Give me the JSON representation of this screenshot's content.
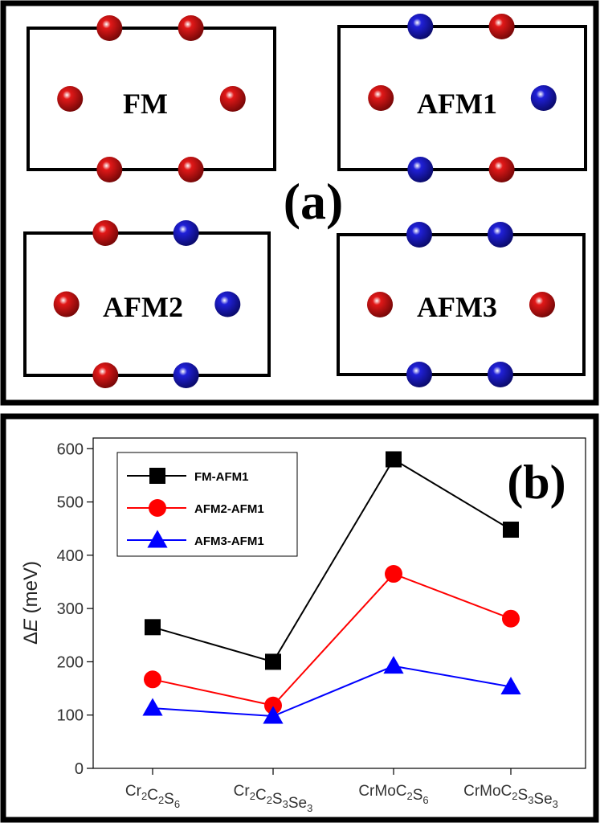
{
  "panel_a": {
    "label": "(a)",
    "colors": {
      "up": "#e11818",
      "down": "#2020d8"
    },
    "configs": [
      {
        "label": "FM",
        "spins": {
          "top": [
            "up",
            "up"
          ],
          "left": "up",
          "right": "up",
          "bottom": [
            "up",
            "up"
          ]
        }
      },
      {
        "label": "AFM1",
        "spins": {
          "top": [
            "down",
            "up"
          ],
          "left": "up",
          "right": "down",
          "bottom": [
            "down",
            "up"
          ]
        }
      },
      {
        "label": "AFM2",
        "spins": {
          "top": [
            "up",
            "down"
          ],
          "left": "up",
          "right": "down",
          "bottom": [
            "up",
            "down"
          ]
        }
      },
      {
        "label": "AFM3",
        "spins": {
          "top": [
            "down",
            "down"
          ],
          "left": "up",
          "right": "up",
          "bottom": [
            "down",
            "down"
          ]
        }
      }
    ]
  },
  "panel_b": {
    "label": "(b)"
  },
  "chart_data": {
    "type": "line",
    "title": "",
    "xlabel": "",
    "ylabel": "ΔE (meV)",
    "ylabel_parts": {
      "delta": "Δ",
      "symbol": "E",
      "unit": " (meV)"
    },
    "ylim": [
      0,
      620
    ],
    "yticks": [
      "0",
      "100",
      "200",
      "300",
      "400",
      "500",
      "600"
    ],
    "ytick_values": [
      0,
      100,
      200,
      300,
      400,
      500,
      600
    ],
    "categories": [
      "Cr2C2S6",
      "Cr2C2S3Se3",
      "CrMoC2S6",
      "CrMoC2S3Se3"
    ],
    "category_labels": [
      [
        [
          "Cr",
          false
        ],
        [
          "2",
          true
        ],
        [
          "C",
          false
        ],
        [
          "2",
          true
        ],
        [
          "S",
          false
        ],
        [
          "6",
          true
        ]
      ],
      [
        [
          "Cr",
          false
        ],
        [
          "2",
          true
        ],
        [
          "C",
          false
        ],
        [
          "2",
          true
        ],
        [
          "S",
          false
        ],
        [
          "3",
          true
        ],
        [
          "Se",
          false
        ],
        [
          "3",
          true
        ]
      ],
      [
        [
          "CrMoC",
          false
        ],
        [
          "2",
          true
        ],
        [
          "S",
          false
        ],
        [
          "6",
          true
        ]
      ],
      [
        [
          "CrMoC",
          false
        ],
        [
          "2",
          true
        ],
        [
          "S",
          false
        ],
        [
          "3",
          true
        ],
        [
          "Se",
          false
        ],
        [
          "3",
          true
        ]
      ]
    ],
    "series": [
      {
        "name": "FM-AFM1",
        "values": [
          265,
          200,
          580,
          448
        ],
        "color": "#000000",
        "marker": "square"
      },
      {
        "name": "AFM2-AFM1",
        "values": [
          167,
          118,
          365,
          281
        ],
        "color": "#ff0000",
        "marker": "circle"
      },
      {
        "name": "AFM3-AFM1",
        "values": [
          113,
          98,
          192,
          153
        ],
        "color": "#0000ff",
        "marker": "triangle"
      }
    ],
    "legend_position": "top-left"
  }
}
